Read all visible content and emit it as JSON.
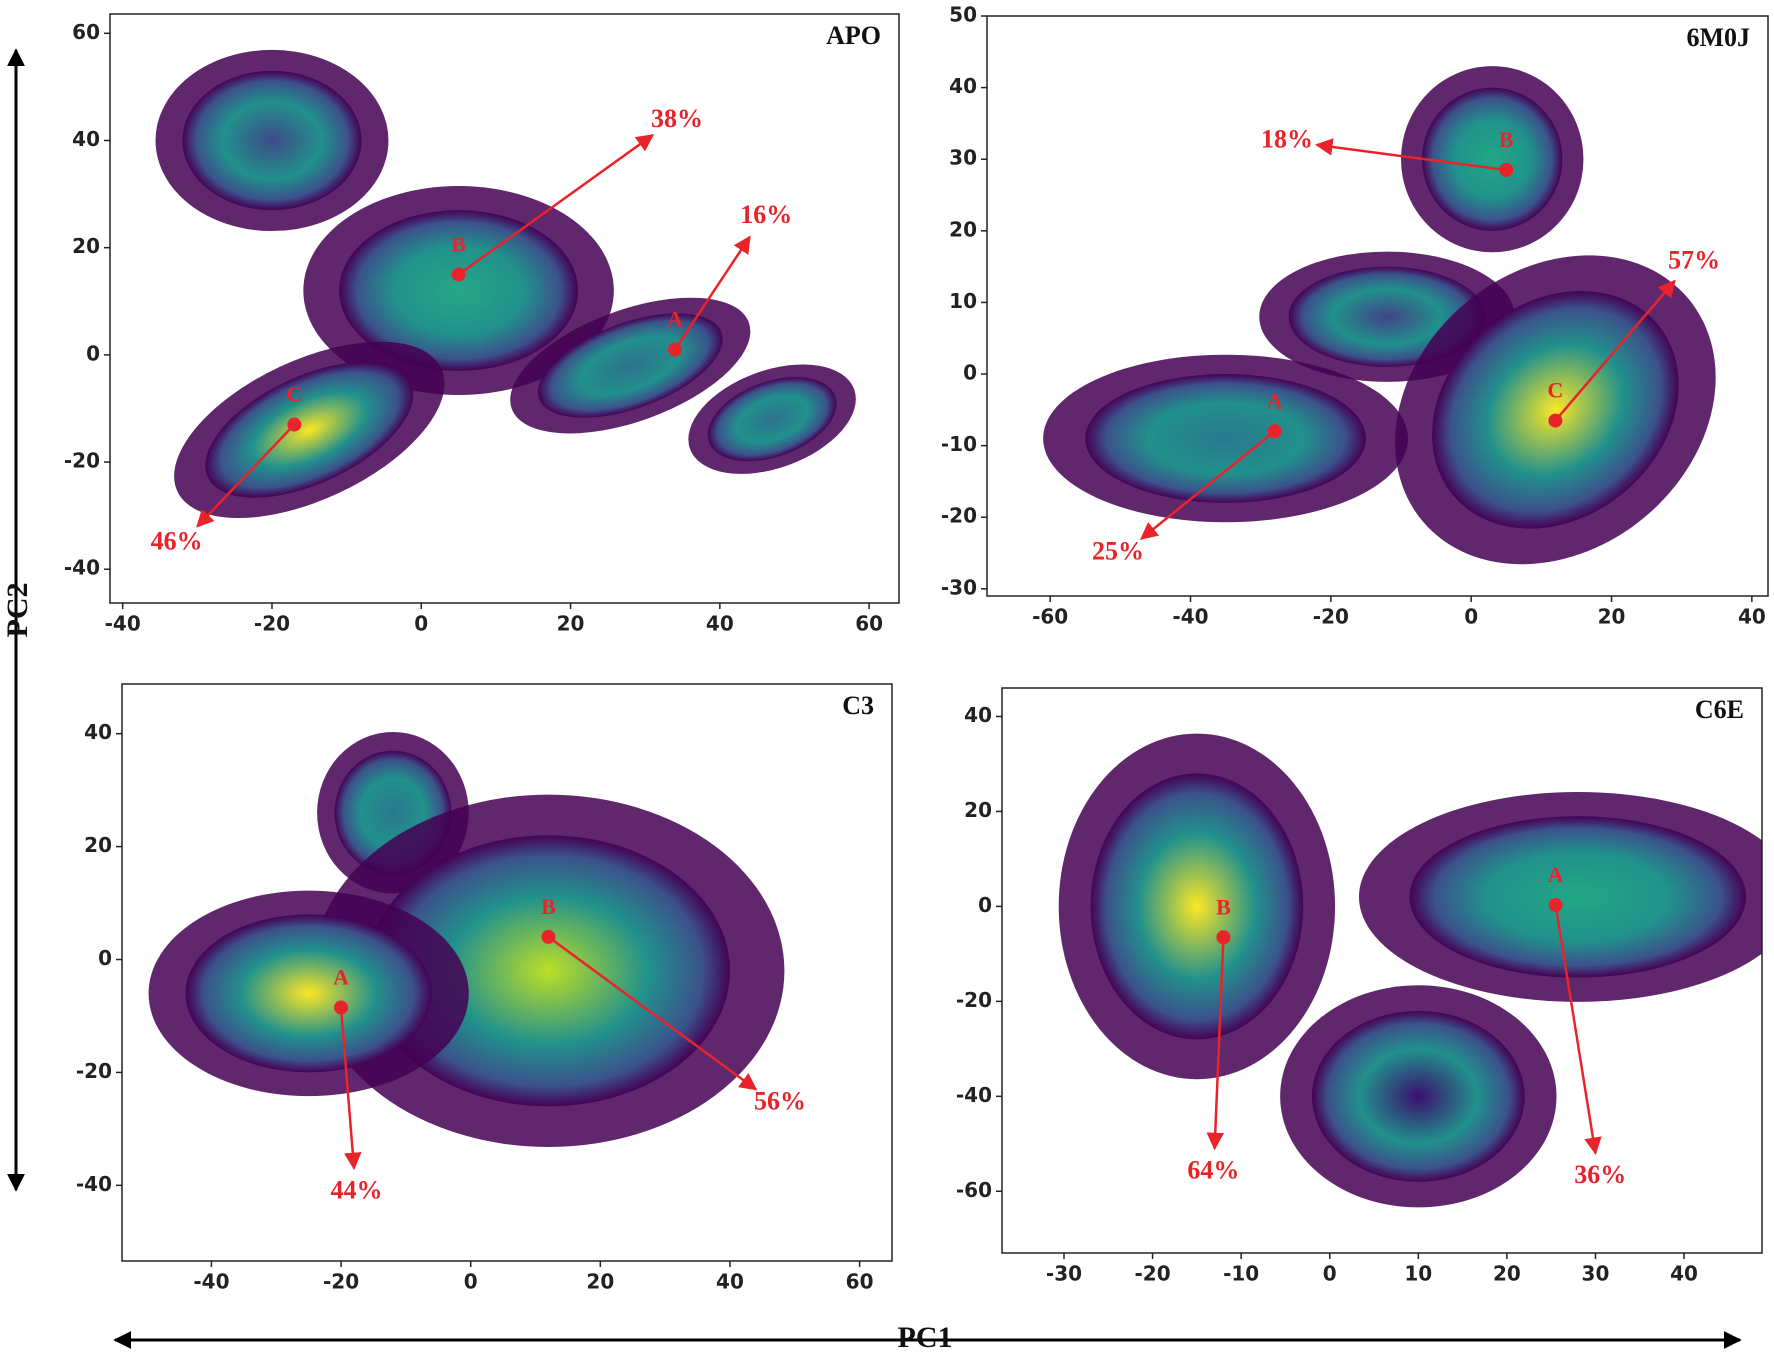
{
  "figure": {
    "xlabel": "PC1",
    "ylabel": "PC2"
  },
  "chart_data": [
    {
      "type": "scatter",
      "title": "APO",
      "xlim": [
        -41.7,
        64
      ],
      "ylim": [
        -46.3,
        63.6
      ],
      "xticks": [
        -40,
        -20,
        0,
        20,
        40,
        60
      ],
      "yticks": [
        -40,
        -20,
        0,
        20,
        40,
        60
      ],
      "clusters": [
        {
          "x": -20,
          "y": 40,
          "rx": 12,
          "ry": 13,
          "angle": 0,
          "color": "#3e4a89"
        },
        {
          "x": 5,
          "y": 12,
          "rx": 16,
          "ry": 15,
          "angle": 0,
          "color": "#26a884"
        },
        {
          "x": -15,
          "y": -14,
          "rx": 15,
          "ry": 10,
          "angle": 25,
          "color": "#fde725"
        },
        {
          "x": 28,
          "y": -2,
          "rx": 13,
          "ry": 8,
          "angle": 20,
          "color": "#2c728e"
        },
        {
          "x": 47,
          "y": -12,
          "rx": 9,
          "ry": 7,
          "angle": 20,
          "color": "#2c728e"
        }
      ],
      "points": [
        {
          "label": "B",
          "x": 5,
          "y": 15,
          "arrow_to": [
            31,
            41
          ],
          "value": 38,
          "value_label": "38%"
        },
        {
          "label": "A",
          "x": 34,
          "y": 1,
          "arrow_to": [
            44,
            22
          ],
          "value": 16,
          "value_label": "16%"
        },
        {
          "label": "C",
          "x": -17,
          "y": -13,
          "arrow_to": [
            -30,
            -32
          ],
          "value": 46,
          "value_label": "46%"
        }
      ]
    },
    {
      "type": "scatter",
      "title": "6M0J",
      "xlim": [
        -69,
        42.3
      ],
      "ylim": [
        -31,
        50
      ],
      "xticks": [
        -60,
        -40,
        -20,
        0,
        20,
        40
      ],
      "yticks": [
        -30,
        -20,
        -10,
        0,
        10,
        20,
        30,
        40,
        50
      ],
      "clusters": [
        {
          "x": 3,
          "y": 30,
          "rx": 10,
          "ry": 10,
          "angle": 0,
          "color": "#22a884"
        },
        {
          "x": -35,
          "y": -9,
          "rx": 20,
          "ry": 9,
          "angle": 0,
          "color": "#2a788e"
        },
        {
          "x": -12,
          "y": 8,
          "rx": 14,
          "ry": 7,
          "angle": 0,
          "color": "#414487"
        },
        {
          "x": 12,
          "y": -5,
          "rx": 19,
          "ry": 15,
          "angle": 40,
          "color": "#fde725"
        }
      ],
      "points": [
        {
          "label": "B",
          "x": 5,
          "y": 28.5,
          "arrow_to": [
            -22,
            32
          ],
          "value": 18,
          "value_label": "18%"
        },
        {
          "label": "C",
          "x": 12,
          "y": -6.5,
          "arrow_to": [
            29,
            13
          ],
          "value": 57,
          "value_label": "57%"
        },
        {
          "label": "A",
          "x": -28,
          "y": -8,
          "arrow_to": [
            -47,
            -23
          ],
          "value": 25,
          "value_label": "25%"
        }
      ]
    },
    {
      "type": "scatter",
      "title": "C3",
      "xlim": [
        -53.8,
        65
      ],
      "ylim": [
        -53.4,
        48.8
      ],
      "xticks": [
        -40,
        -20,
        0,
        20,
        40,
        60
      ],
      "yticks": [
        -40,
        -20,
        0,
        20,
        40
      ],
      "clusters": [
        {
          "x": -12,
          "y": 26,
          "rx": 9,
          "ry": 11,
          "angle": 0,
          "color": "#2a788e"
        },
        {
          "x": 12,
          "y": -2,
          "rx": 28,
          "ry": 24,
          "angle": 0,
          "color": "#bddf26"
        },
        {
          "x": -25,
          "y": -6,
          "rx": 19,
          "ry": 14,
          "angle": 0,
          "color": "#fde725"
        }
      ],
      "points": [
        {
          "label": "A",
          "x": -20,
          "y": -8.5,
          "arrow_to": [
            -18,
            -37
          ],
          "value": 44,
          "value_label": "44%"
        },
        {
          "label": "B",
          "x": 12,
          "y": 4,
          "arrow_to": [
            44,
            -23
          ],
          "value": 56,
          "value_label": "56%"
        }
      ]
    },
    {
      "type": "scatter",
      "title": "C6E",
      "xlim": [
        -37,
        48.8
      ],
      "ylim": [
        -73,
        46
      ],
      "xticks": [
        -30,
        -20,
        -10,
        0,
        10,
        20,
        30,
        40
      ],
      "yticks": [
        -60,
        -40,
        -20,
        0,
        20,
        40
      ],
      "clusters": [
        {
          "x": 10,
          "y": -40,
          "rx": 12,
          "ry": 18,
          "angle": 0,
          "color": "#3b0f70"
        },
        {
          "x": 28,
          "y": 2,
          "rx": 19,
          "ry": 17,
          "angle": 0,
          "color": "#22a884"
        },
        {
          "x": -15,
          "y": 0,
          "rx": 12,
          "ry": 28,
          "angle": 0,
          "color": "#fde725"
        }
      ],
      "points": [
        {
          "label": "B",
          "x": -12,
          "y": -6.5,
          "arrow_to": [
            -13,
            -51
          ],
          "value": 64,
          "value_label": "64%"
        },
        {
          "label": "A",
          "x": 25.5,
          "y": 0.3,
          "arrow_to": [
            30,
            -52
          ],
          "value": 36,
          "value_label": "36%"
        }
      ]
    }
  ]
}
